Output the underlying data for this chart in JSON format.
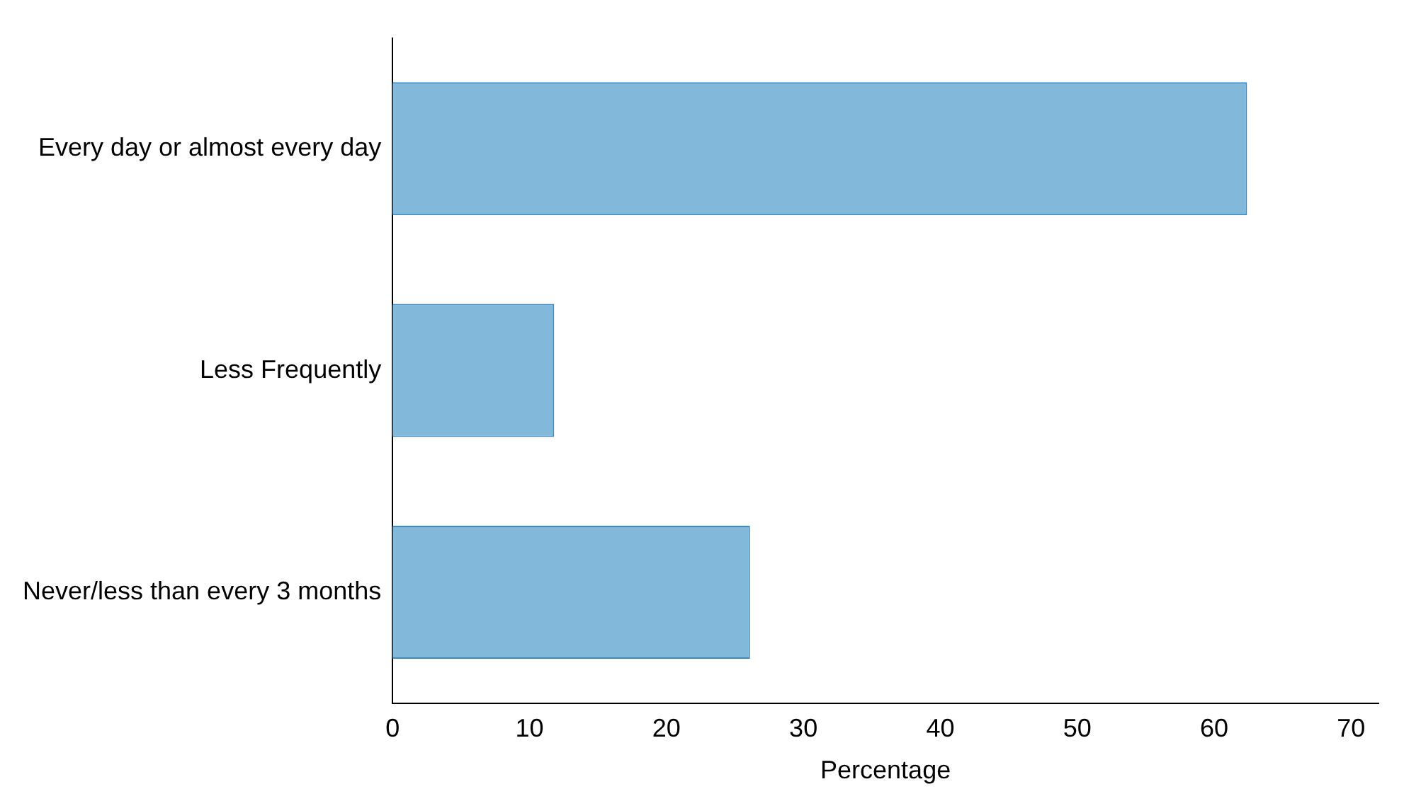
{
  "chart_data": {
    "type": "bar",
    "orientation": "horizontal",
    "categories": [
      "Every day or almost every day",
      "Less Frequently",
      "Never/less than every 3 months"
    ],
    "values": [
      62.4,
      11.8,
      26.1
    ],
    "color": "#82b8d9",
    "xlabel": "Percentage",
    "xlim": [
      0,
      72
    ],
    "xticks": [
      0,
      10,
      20,
      30,
      40,
      50,
      60,
      70
    ],
    "grid": false,
    "legend": false
  }
}
